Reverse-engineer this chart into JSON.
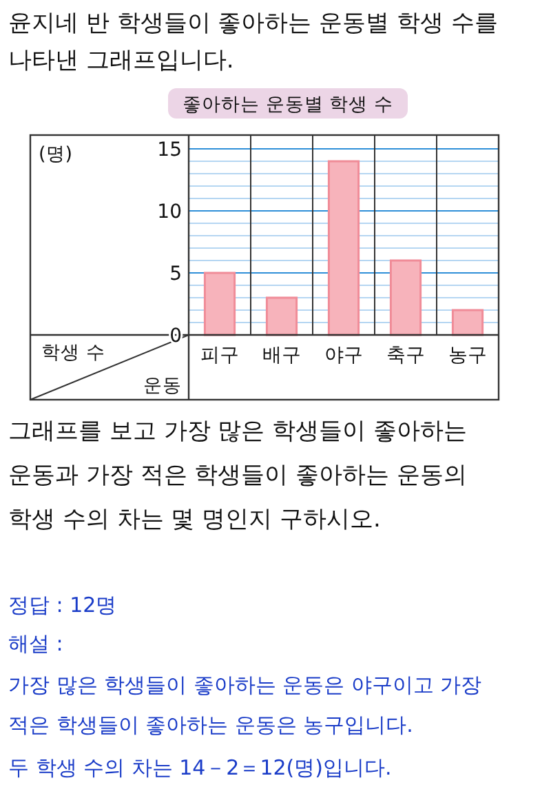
{
  "chart_data": {
    "type": "bar",
    "title": "좋아하는 운동별 학생 수",
    "ylabel": "(명)",
    "xlabel": "운동",
    "categories": [
      "피구",
      "배구",
      "야구",
      "축구",
      "농구"
    ],
    "values": [
      5,
      3,
      14,
      6,
      2
    ],
    "color": "#f7b3bb",
    "ylim": [
      0,
      15
    ],
    "yticks": [
      0,
      {
        "value": 1,
        "label": null
      },
      {
        "value": 2,
        "label": null
      },
      {
        "value": 3,
        "label": null
      },
      {
        "value": 4,
        "label": null
      },
      5,
      {
        "value": 6,
        "label": null
      },
      {
        "value": 7,
        "label": null
      },
      {
        "value": 8,
        "label": null
      },
      {
        "value": 9,
        "label": null
      },
      10,
      {
        "value": 11,
        "label": null
      },
      {
        "value": 12,
        "label": null
      },
      {
        "value": 13,
        "label": null
      },
      {
        "value": 14,
        "label": null
      },
      15
    ],
    "grid": "y",
    "annotations": [
      "윤지네 반 학생들이 좋아하는 운동별 학생 수를 나타낸 그래프입니다.",
      "학생 수",
      "그래프를 보고 가장 많은 학생들이 좋아하는 운동과 가장 적은 학생들이 좋아하는 운동의 학생 수의 차는 몇 명인지 구하시오.",
      "정답 : 12명",
      "해설 :",
      "가장 많은 학생들이 좋아하는 운동은 야구이고 가장 적은 학생들이 좋아하는 운동은 농구입니다.",
      "두 학생 수의 차는 14－2＝12(명)입니다."
    ]
  }
}
